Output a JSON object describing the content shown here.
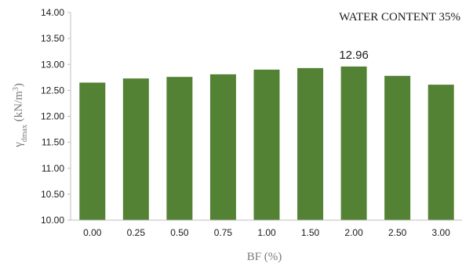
{
  "chart_data": {
    "type": "bar",
    "title": "WATER CONTENT 35%",
    "xlabel": "BF (%)",
    "ylabel_main": "γ",
    "ylabel_sub": "dmax",
    "ylabel_unit_pre": " (kN/m",
    "ylabel_unit_sup": "3",
    "ylabel_unit_post": ")",
    "categories": [
      "0.00",
      "0.25",
      "0.50",
      "0.75",
      "1.00",
      "1.50",
      "2.00",
      "2.50",
      "3.00"
    ],
    "values": [
      12.65,
      12.73,
      12.76,
      12.81,
      12.9,
      12.93,
      12.96,
      12.78,
      12.61
    ],
    "ylim": [
      10.0,
      14.0
    ],
    "yticks": [
      "10.00",
      "10.50",
      "11.00",
      "11.50",
      "12.00",
      "12.50",
      "13.00",
      "13.50",
      "14.00"
    ],
    "data_labels": [
      {
        "index": 6,
        "text": "12.96"
      }
    ],
    "bar_color": "#548235",
    "axis_color": "#bfbfbf",
    "grid": false
  }
}
